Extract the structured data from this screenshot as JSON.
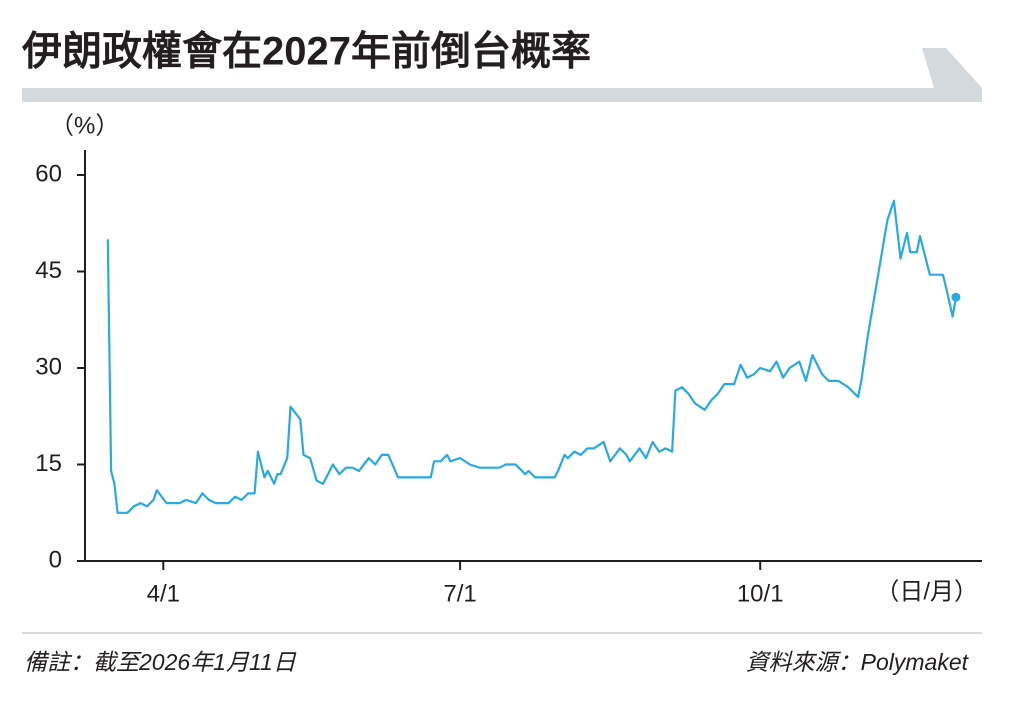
{
  "chart_data": {
    "type": "line",
    "title": "伊朗政權會在2027年前倒台概率",
    "y_unit": "（%）",
    "x_unit": "（日/月）",
    "note": "備註：截至2026年1月11日",
    "source": "資料來源：Polymaket",
    "x": [
      "3/15",
      "3/16",
      "3/17",
      "3/18",
      "3/21",
      "3/23",
      "3/25",
      "3/27",
      "3/29",
      "3/30",
      "4/2",
      "4/6",
      "4/8",
      "4/11",
      "4/13",
      "4/15",
      "4/17",
      "4/21",
      "4/23",
      "4/25",
      "4/27",
      "4/29",
      "4/30",
      "5/2",
      "5/3",
      "5/5",
      "5/6",
      "5/7",
      "5/9",
      "5/10",
      "5/13",
      "5/14",
      "5/16",
      "5/18",
      "5/20",
      "5/23",
      "5/25",
      "5/27",
      "5/29",
      "5/31",
      "6/3",
      "6/5",
      "6/7",
      "6/9",
      "6/12",
      "6/15",
      "6/22",
      "6/23",
      "6/25",
      "6/27",
      "6/28",
      "7/1",
      "7/4",
      "7/7",
      "7/13",
      "7/15",
      "7/18",
      "7/21",
      "7/22",
      "7/24",
      "7/30",
      "7/31",
      "8/2",
      "8/3",
      "8/5",
      "8/7",
      "8/9",
      "8/11",
      "8/14",
      "8/16",
      "8/19",
      "8/21",
      "8/22",
      "8/25",
      "8/27",
      "8/29",
      "8/31",
      "9/2",
      "9/4",
      "9/5",
      "9/7",
      "9/9",
      "9/11",
      "9/14",
      "9/16",
      "9/18",
      "9/20",
      "9/23",
      "9/25",
      "9/27",
      "9/29",
      "10/1",
      "10/4",
      "10/6",
      "10/8",
      "10/10",
      "10/13",
      "10/15",
      "10/17",
      "10/20",
      "10/22",
      "10/25",
      "10/28",
      "10/31",
      "11/1",
      "11/3",
      "11/6",
      "11/9",
      "11/11",
      "11/13",
      "11/15",
      "11/16",
      "11/18",
      "11/19",
      "11/22",
      "11/26",
      "11/27",
      "11/29",
      "11/30"
    ],
    "series": [
      {
        "color": "#29abe2",
        "values": [
          50,
          14,
          12,
          7.5,
          7.5,
          8.5,
          9,
          8.5,
          9.5,
          11,
          9,
          9,
          9.5,
          9,
          10.5,
          9.5,
          9,
          9,
          10,
          9.5,
          10.5,
          10.5,
          17,
          13,
          14,
          12,
          13.5,
          13.5,
          16,
          24,
          22,
          16.5,
          16,
          12.5,
          12,
          15,
          13.5,
          14.5,
          14.5,
          14,
          16,
          15,
          16.5,
          16.5,
          13,
          13,
          13,
          15.5,
          15.5,
          16.5,
          15.5,
          16,
          15,
          14.5,
          14.5,
          15,
          15,
          13.5,
          14,
          13,
          13,
          14,
          16.5,
          16,
          17,
          16.5,
          17.5,
          17.5,
          18.5,
          15.5,
          17.5,
          16.5,
          15.5,
          17.5,
          16,
          18.5,
          17,
          17.5,
          17,
          26.5,
          27,
          26,
          24.5,
          23.5,
          25,
          26,
          27.5,
          27.5,
          30.5,
          28.5,
          29,
          30,
          29.5,
          31,
          28.5,
          30,
          31,
          28,
          32,
          29,
          28,
          28,
          27,
          25.5,
          28,
          35,
          44,
          53,
          56,
          47,
          51,
          48,
          48,
          50.5,
          44.5,
          44.5,
          42.5,
          38,
          41
        ]
      }
    ],
    "end_marker": true,
    "xlim": [
      "3/8",
      "12/8"
    ],
    "xticks": [
      "4/1",
      "7/1",
      "10/1"
    ],
    "ylim": [
      0,
      60
    ],
    "yticks": [
      0,
      15,
      30,
      45,
      60
    ]
  }
}
